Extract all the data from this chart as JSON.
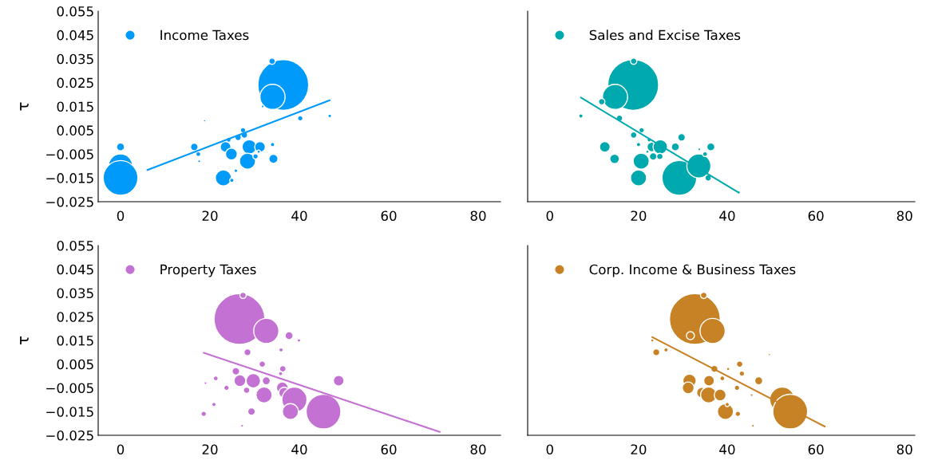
{
  "chart_data": [
    {
      "type": "bubble",
      "ylabel": "τ",
      "legend": "top left",
      "grid": false,
      "xlim": [
        -5,
        85
      ],
      "ylim": [
        -0.025,
        0.055
      ],
      "xticks": [
        0,
        20,
        40,
        60,
        80
      ],
      "yticks": [
        {
          "value": -0.025,
          "label": "−0.025"
        },
        {
          "value": -0.015,
          "label": "−0.015"
        },
        {
          "value": -0.005,
          "label": "−0.005"
        },
        0.005,
        0.015,
        0.025,
        0.035,
        0.045,
        0.055
      ],
      "series": [
        {
          "name": "Income Taxes",
          "color": "#009afa",
          "x": [
            36.4,
            33.9,
            34.0,
            31.8,
            40.2,
            46.8,
            0,
            0,
            0,
            16.5,
            17.4,
            17.6,
            18.8,
            23.5,
            24.8,
            23.0,
            24.9,
            25.8,
            24.2,
            26.3,
            27.7,
            27.4,
            28.8,
            28.4,
            31.2,
            30.2,
            30.9,
            34.0,
            34.2
          ],
          "values": [
            0.024,
            0.034,
            0.019,
            0.015,
            0.01,
            0.011,
            -0.002,
            -0.01,
            -0.015,
            -0.002,
            -0.005,
            -0.008,
            0.009,
            -0.002,
            -0.005,
            -0.015,
            -0.016,
            -0.012,
            0.001,
            0.002,
            0.003,
            0.005,
            -0.002,
            -0.008,
            -0.002,
            -0.006,
            -0.004,
            -0.001,
            -0.007
          ],
          "sizes": [
            1,
            0.016,
            0.245,
            0.003,
            0.011,
            0.005,
            0.025,
            0.224,
            0.468,
            0.022,
            0.009,
            0.003,
            0.002,
            0.044,
            0.054,
            0.1,
            0.007,
            0.005,
            0.009,
            0.016,
            0.016,
            0.011,
            0.081,
            0.1,
            0.044,
            0.011,
            0.004,
            0.007,
            0.032
          ]
        },
        {
          "type": "line",
          "color": "#009afa",
          "x": [
            6.0,
            46.8
          ],
          "values": [
            -0.0117,
            0.0176
          ]
        }
      ]
    },
    {
      "type": "bubble",
      "legend": "top left",
      "grid": false,
      "tick_labels": "x",
      "xlim": [
        -5,
        82.3
      ],
      "ylim": [
        -0.025,
        0.055
      ],
      "xticks": [
        0,
        20,
        40,
        60,
        80
      ],
      "yticks": [
        {
          "value": -0.025,
          "label": null
        },
        {
          "value": -0.015,
          "label": null
        },
        {
          "value": -0.005,
          "label": null
        },
        {
          "value": 0.005,
          "label": null
        },
        {
          "value": 0.015,
          "label": null
        },
        {
          "value": 0.025,
          "label": null
        },
        {
          "value": 0.035,
          "label": null
        },
        {
          "value": 0.045,
          "label": null
        },
        {
          "value": 0.055,
          "label": null
        }
      ],
      "series": [
        {
          "name": "Sales and Excise Taxes",
          "color": "#00a9ad",
          "x": [
            18.8,
            18.9,
            14.7,
            11.7,
            7.0,
            15.7,
            20.7,
            18.9,
            20.0,
            12.4,
            14.6,
            20.6,
            20.0,
            22.4,
            23.0,
            24.9,
            23.3,
            24.8,
            29.7,
            28.3,
            29.2,
            33.6,
            36.3,
            35.0,
            33.7,
            35.7,
            42.6,
            22.0
          ],
          "values": [
            0.024,
            0.034,
            0.019,
            0.017,
            0.011,
            0.01,
            0.005,
            0.003,
            -0.001,
            -0.002,
            -0.007,
            -0.008,
            -0.015,
            0.001,
            -0.002,
            -0.002,
            -0.006,
            -0.006,
            0.002,
            -0.002,
            -0.015,
            -0.01,
            -0.002,
            -0.005,
            -0.003,
            -0.015,
            -0.021,
            -0.004
          ],
          "sizes": [
            1,
            0.016,
            0.245,
            0.016,
            0.007,
            0.016,
            0.011,
            0.016,
            0.007,
            0.044,
            0.036,
            0.1,
            0.1,
            0.007,
            0.036,
            0.081,
            0.022,
            0.016,
            0.022,
            0.025,
            0.468,
            0.224,
            0.025,
            0.009,
            0.003,
            0.016,
            0.003,
            0.004
          ]
        },
        {
          "type": "line",
          "color": "#00a9ad",
          "x": [
            7.0,
            42.6
          ],
          "values": [
            0.0187,
            -0.0212
          ]
        }
      ]
    },
    {
      "type": "bubble",
      "ylabel": "τ",
      "legend": "top left",
      "grid": false,
      "xlim": [
        -5,
        85
      ],
      "ylim": [
        -0.025,
        0.055
      ],
      "xticks": [
        0,
        20,
        40,
        60,
        80
      ],
      "yticks": [
        {
          "value": -0.025,
          "label": "−0.025"
        },
        {
          "value": -0.015,
          "label": "−0.015"
        },
        {
          "value": -0.005,
          "label": "−0.005"
        },
        0.005,
        0.015,
        0.025,
        0.035,
        0.045,
        0.055
      ],
      "series": [
        {
          "name": "Property Taxes",
          "color": "#c371d2",
          "x": [
            26.6,
            27.4,
            32.6,
            37.7,
            39.9,
            28.4,
            35.9,
            31.7,
            25.8,
            36.3,
            35.8,
            21.3,
            19.0,
            26.7,
            29.7,
            32.6,
            23.7,
            28.2,
            36.2,
            36.6,
            32.1,
            38.9,
            38.0,
            45.4,
            48.8,
            20.9,
            18.6,
            29.3,
            27.2
          ],
          "values": [
            0.024,
            0.034,
            0.019,
            0.017,
            0.015,
            0.01,
            0.011,
            0.005,
            0.002,
            0.003,
            0.001,
            -0.001,
            -0.003,
            -0.002,
            -0.002,
            -0.002,
            -0.005,
            -0.006,
            -0.005,
            -0.007,
            -0.008,
            -0.01,
            -0.015,
            -0.015,
            -0.002,
            -0.012,
            -0.016,
            -0.015,
            -0.021
          ],
          "sizes": [
            1,
            0.016,
            0.245,
            0.025,
            0.005,
            0.019,
            0.007,
            0.016,
            0.022,
            0.016,
            0.007,
            0.009,
            0.003,
            0.054,
            0.081,
            0.025,
            0.011,
            0.016,
            0.054,
            0.044,
            0.1,
            0.245,
            0.1,
            0.468,
            0.044,
            0.007,
            0.011,
            0.022,
            0.003
          ]
        },
        {
          "type": "line",
          "color": "#c371d2",
          "x": [
            18.6,
            71.4
          ],
          "values": [
            0.0098,
            -0.0236
          ]
        }
      ]
    },
    {
      "type": "bubble",
      "legend": "top left",
      "grid": false,
      "tick_labels": "x",
      "xlim": [
        -5,
        82.3
      ],
      "ylim": [
        -0.025,
        0.055
      ],
      "xticks": [
        0,
        20,
        40,
        60,
        80
      ],
      "yticks": [
        {
          "value": -0.025,
          "label": null
        },
        {
          "value": -0.015,
          "label": null
        },
        {
          "value": -0.005,
          "label": null
        },
        {
          "value": 0.005,
          "label": null
        },
        {
          "value": 0.015,
          "label": null
        },
        {
          "value": 0.025,
          "label": null
        },
        {
          "value": 0.035,
          "label": null
        },
        {
          "value": 0.045,
          "label": null
        },
        {
          "value": 0.055,
          "label": null
        }
      ],
      "series": [
        {
          "name": "Corp. Income & Business Taxes",
          "color": "#c68225",
          "x": [
            32.7,
            34.7,
            36.7,
            31.7,
            23.1,
            24.0,
            26.2,
            42.8,
            43.3,
            37.1,
            40.2,
            38.9,
            47.1,
            31.5,
            31.2,
            35.9,
            42.2,
            34.3,
            35.8,
            38.4,
            45.5,
            39.6,
            40.0,
            42.4,
            45.8,
            52.4,
            54.2,
            49.5
          ],
          "values": [
            0.024,
            0.034,
            0.019,
            0.017,
            0.015,
            0.01,
            0.011,
            0.005,
            0.001,
            0.003,
            0.003,
            -0.001,
            -0.002,
            -0.002,
            -0.005,
            -0.002,
            -0.005,
            -0.007,
            -0.008,
            -0.008,
            -0.008,
            -0.015,
            -0.012,
            -0.016,
            -0.021,
            -0.01,
            -0.015,
            0.009
          ],
          "sizes": [
            1,
            0.016,
            0.245,
            0.025,
            0.004,
            0.019,
            0.007,
            0.016,
            0.011,
            0.019,
            0.004,
            0.009,
            0.025,
            0.069,
            0.054,
            0.044,
            0.011,
            0.044,
            0.1,
            0.054,
            0.003,
            0.1,
            0.007,
            0.011,
            0.003,
            0.245,
            0.468,
            0.002
          ]
        },
        {
          "type": "line",
          "color": "#c68225",
          "x": [
            23.1,
            62.0
          ],
          "values": [
            0.0164,
            -0.0213
          ]
        }
      ]
    }
  ]
}
